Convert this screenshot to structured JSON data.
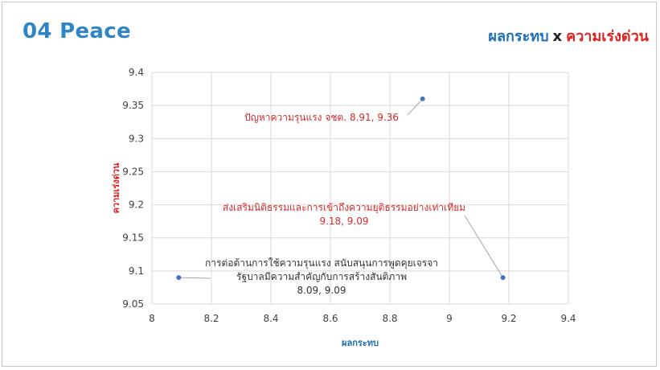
{
  "slide": {
    "title": "04 Peace",
    "subtitle_impact": "ผลกระทบ",
    "subtitle_times": "x",
    "subtitle_urgency": "ความเร่งด่วน"
  },
  "colors": {
    "title": "#2f86c6",
    "impact": "#1f6fb5",
    "urgency": "#e02020",
    "point": "#4472c4",
    "grid": "#d9d9d9",
    "red_label": "#d42a2a",
    "dark_label": "#333333"
  },
  "chart_data": {
    "type": "scatter",
    "xlabel": "ผลกระทบ",
    "ylabel": "ความเร่งด่วน",
    "xlim": [
      8,
      9.4
    ],
    "ylim": [
      9.05,
      9.4
    ],
    "grid": true,
    "x_ticks": [
      "8",
      "8.2",
      "8.4",
      "8.6",
      "8.8",
      "9",
      "9.2",
      "9.4"
    ],
    "y_ticks": [
      "9.05",
      "9.1",
      "9.15",
      "9.2",
      "9.25",
      "9.3",
      "9.35",
      "9.4"
    ],
    "points": [
      {
        "x": 8.91,
        "y": 9.36,
        "label_lines": [
          "ปัญหาความรุนแรง จชต. 8.91, 9.36"
        ],
        "label_color": "red"
      },
      {
        "x": 9.18,
        "y": 9.09,
        "label_lines": [
          "ส่งเสริมนิติธรรมและการเข้าถึงความยุติธรรมอย่างเท่าเทียม",
          "9.18, 9.09"
        ],
        "label_color": "red"
      },
      {
        "x": 8.09,
        "y": 9.09,
        "label_lines": [
          "การต่อต้านการใช้ความรุนแรง สนับสนุนการพูดคุยเจรจา",
          "รัฐบาลมีความสำคัญกับการสร้างสันติภาพ",
          "8.09, 9.09"
        ],
        "label_color": "dark"
      }
    ]
  }
}
